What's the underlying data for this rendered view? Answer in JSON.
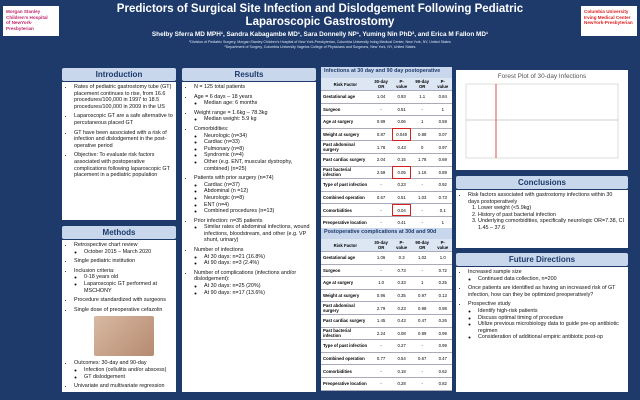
{
  "header": {
    "title_line1": "Predictors of Surgical Site Infection and Dislodgement Following Pediatric",
    "title_line2": "Laparoscopic Gastrostomy",
    "authors": "Shelby Sferra MD MPH¹, Sandra Kabagambe MD¹, Sara Donnelly NP¹, Yuming Nin PhD², and Erica M Fallon MD¹",
    "affiliation1": "¹Division of Pediatric Surgery, Morgan Stanley Children's Hospital of New York-Presbyterian, Columbia University Irving Medical Center, New York, NY, United States",
    "affiliation2": "²Department of Surgery, Columbia University Vagelos College of Physicians and Surgeons, New York, NY, United States",
    "logo_left": [
      "Morgan Stanley",
      "Children's Hospital",
      "of NewYork-Presbyterian"
    ],
    "logo_right": [
      "Columbia University",
      "Irving Medical Center",
      "NewYork-Presbyterian"
    ]
  },
  "sections": {
    "introduction": {
      "title": "Introduction",
      "items": [
        {
          "text": "Rates of pediatric gastrostomy tube (GT) placement continues to rise, from 16.6 procedures/100,000 in 1997 to 18.5 procedures/100,000 in 2009 in the US"
        },
        {
          "text": "Laparoscopic GT are a safe alternative to percutaneous placed GT"
        },
        {
          "text": "GT have been associated with a risk of infection and dislodgement in the post-operative period"
        },
        {
          "text": "Objective: To evaluate risk factors associated with postoperative complications following laparoscopic GT placement in a pediatric population"
        }
      ]
    },
    "methods": {
      "title": "Methods",
      "items": [
        {
          "text": "Retrospective chart review",
          "sub": [
            "October 2015 – March 2020"
          ]
        },
        {
          "text": "Single pediatric institution"
        },
        {
          "text": "Inclusion criteria:",
          "sub": [
            "0-18 years old",
            "Laparoscopic GT performed at MSCHONY"
          ]
        },
        {
          "text": "Procedure standardized with surgeons"
        },
        {
          "text": "Single dose of preoperative cefazolin"
        },
        {
          "text": "Outcomes: 30-day and 90-day",
          "sub": [
            "Infection (cellulitis and/or abscess)",
            "GT dislodgement"
          ]
        },
        {
          "text": "Univariate and multivariate regression"
        }
      ]
    },
    "results": {
      "title": "Results",
      "items": [
        {
          "text": "N = 125 total patients"
        },
        {
          "text": "Age = 6 days – 18 years",
          "sub": [
            "Median age: 6 months"
          ]
        },
        {
          "text": "Weight range = 1.6kg – 78.3kg",
          "sub": [
            "Median weight: 5.9 kg"
          ]
        },
        {
          "text": "Comorbidities:",
          "sub": [
            "Neurologic (n=34)",
            "Cardiac (n=33)",
            "Pulmonary (n=8)",
            "Syndromic (n=4)",
            "Other (e.g. ENT, muscular dystrophy, combined) (n=25)"
          ]
        },
        {
          "text": "Patients with prior surgery (n=74)",
          "sub": [
            "Cardiac (n=37)",
            "Abdominal (n =12)",
            "Neurologic (n=8)",
            "ENT (n=4)",
            "Combined procedures (n=13)"
          ]
        },
        {
          "text": "Prior infection: n=35 patients",
          "sub": [
            "Similar rates of abdominal infections, wound infections, bloodstream, and other (e.g. VP shunt, urinary)"
          ]
        },
        {
          "text": "Number of infections",
          "sub": [
            "At 30 days: n=21 (16.8%)",
            "At 90 days: n=3 (2.4%)"
          ]
        },
        {
          "text": "Number of complications (infections and/or dislodgement):",
          "sub": [
            "At 30 days: n=25 (20%)",
            "At 90 days: n=17 (13.6%)"
          ]
        }
      ]
    },
    "conclusions": {
      "title": "Conclusions",
      "items": [
        {
          "text": "Risk factors associated with gastrostomy infections within 30 days postoperatively",
          "sub": [
            "Lower weight (<5.9kg)",
            "History of past bacterial infection",
            "Underlying comorbidities, specifically neurologic OR=7.38, CI 1.45 – 37.6"
          ]
        }
      ]
    },
    "future": {
      "title": "Future Directions",
      "items": [
        {
          "text": "Increased sample size",
          "sub": [
            "Continued data collection, n=200"
          ]
        },
        {
          "text": "Once patients are identified as having an increased risk of GT infection, how can they be optimized preoperatively?"
        },
        {
          "text": "Prospective study",
          "sub": [
            "Identify high-risk patients",
            "Discuss optimal timing of procedure",
            "Utilize previous microbiology data to guide pre-op antibiotic regimen",
            "Consideration of additional empiric antibiotic post-op"
          ]
        }
      ]
    }
  },
  "tables": [
    {
      "title": "Infections at 30 day and 90 day postoperative",
      "columns": [
        "Risk Factor",
        "30-day OR",
        "P-value",
        "90-day OR",
        "P-value"
      ],
      "rows": [
        [
          "Gestational age",
          "1.04",
          "0.93",
          "1.1",
          "0.84"
        ],
        [
          "Surgeon",
          "-",
          "0.51",
          "-",
          "1"
        ],
        [
          "Age at surgery",
          "0.99",
          "0.06",
          "1",
          "0.59"
        ],
        [
          "Weight at surgery",
          "0.87",
          "0.049",
          "0.88",
          "0.07"
        ],
        [
          "Past abdominal surgery",
          "1.78",
          "0.43",
          "0",
          "0.97"
        ],
        [
          "Past cardiac surgery",
          "2.04",
          "0.15",
          "1.78",
          "0.69"
        ],
        [
          "Past bacterial infection",
          "2.59",
          "0.05",
          "1.16",
          "0.89"
        ],
        [
          "Type of past infection",
          "-",
          "0.23",
          "-",
          "0.92"
        ],
        [
          "Combined operation",
          "0.67",
          "0.51",
          "1.03",
          "0.73"
        ],
        [
          "Comorbidities",
          "-",
          "0.04",
          "-",
          "0.1"
        ],
        [
          "Preoperative location",
          "-",
          "0.41",
          "-",
          "1"
        ]
      ]
    },
    {
      "title": "Postoperative complications at 30d and 90d",
      "columns": [
        "Risk Factor",
        "30-day OR",
        "P-value",
        "90-day OR",
        "P-value"
      ],
      "rows": [
        [
          "Gestational age",
          "1.06",
          "0.3",
          "1.02",
          "1.0"
        ],
        [
          "Surgeon",
          "-",
          "0.73",
          "-",
          "0.72"
        ],
        [
          "Age at surgery",
          "1.0",
          "0.33",
          "1",
          "0.25"
        ],
        [
          "Weight at surgery",
          "0.96",
          "0.35",
          "0.97",
          "0.13"
        ],
        [
          "Past abdominal surgery",
          "2.79",
          "0.23",
          "0.98",
          "0.98"
        ],
        [
          "Past cardiac surgery",
          "1.45",
          "0.43",
          "0.47",
          "0.26"
        ],
        [
          "Past bacterial infection",
          "2.24",
          "0.08",
          "0.89",
          "0.99"
        ],
        [
          "Type of past infection",
          "-",
          "0.27",
          "-",
          "0.99"
        ],
        [
          "Combined operation",
          "0.77",
          "0.54",
          "0.67",
          "0.47"
        ],
        [
          "Comorbidities",
          "-",
          "0.18",
          "-",
          "0.62"
        ],
        [
          "Preoperative location",
          "-",
          "0.28",
          "-",
          "0.82"
        ]
      ]
    }
  ],
  "forest_plot": {
    "title": "Forest Plot of 30-day Infections"
  }
}
